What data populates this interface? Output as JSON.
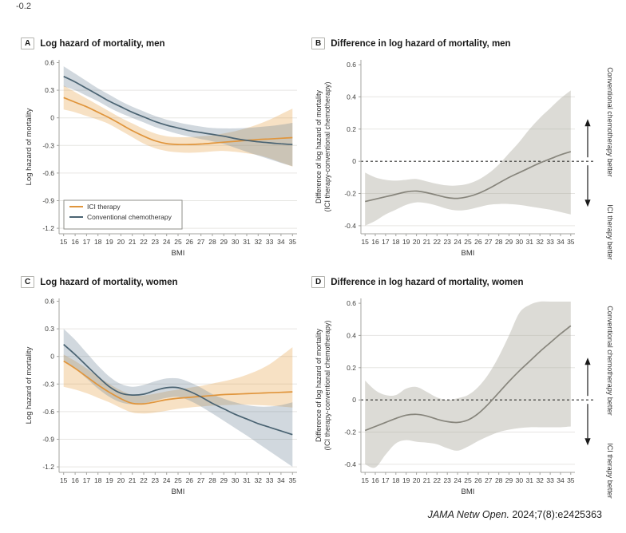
{
  "stray_text": "-0.2",
  "citation": {
    "journal": "JAMA Netw Open.",
    "rest": " 2024;7(8):e2425363"
  },
  "colors": {
    "ici": {
      "line": "#E0953C",
      "band": "#E9A851",
      "band_opacity": 0.34
    },
    "chemo": {
      "line": "#4A6372",
      "band": "#74899A",
      "band_opacity": 0.33
    },
    "diff": {
      "line": "#87857C",
      "band": "#ACA99E",
      "band_opacity": 0.42
    },
    "grid": "#E6E5E2",
    "axis": "#A3A39F",
    "tick": "#3E3E3C",
    "label": "#333333",
    "dash": "#2E2E2C"
  },
  "panels": [
    {
      "badge": "A",
      "title": "Log hazard of mortality, men"
    },
    {
      "badge": "B",
      "title": "Difference in log hazard of mortality, men"
    },
    {
      "badge": "C",
      "title": "Log hazard of mortality, women"
    },
    {
      "badge": "D",
      "title": "Difference in log hazard of mortality, women"
    }
  ],
  "chart_data": [
    {
      "panel": "A",
      "type": "line",
      "title": "Log hazard of mortality, men",
      "x": [
        15,
        16,
        17,
        18,
        19,
        20,
        21,
        22,
        23,
        24,
        25,
        26,
        27,
        28,
        29,
        30,
        31,
        32,
        33,
        34,
        35
      ],
      "xlabel": "BMI",
      "ylabel": "Log hazard of mortality",
      "ylim": [
        -1.2,
        0.6
      ],
      "yticks": [
        "0.6",
        "0.3",
        "0",
        "-0.3",
        "-0.6",
        "-0.9",
        "-1.2"
      ],
      "legend": {
        "position": "bottom-left"
      },
      "series": [
        {
          "name": "ICI therapy",
          "color": "ici",
          "values": [
            0.22,
            0.17,
            0.12,
            0.06,
            0.0,
            -0.07,
            -0.14,
            -0.2,
            -0.25,
            -0.28,
            -0.29,
            -0.29,
            -0.285,
            -0.275,
            -0.265,
            -0.255,
            -0.245,
            -0.235,
            -0.23,
            -0.222,
            -0.215
          ],
          "upper": [
            0.35,
            0.28,
            0.21,
            0.14,
            0.07,
            0.0,
            -0.06,
            -0.12,
            -0.17,
            -0.2,
            -0.21,
            -0.21,
            -0.2,
            -0.19,
            -0.17,
            -0.145,
            -0.11,
            -0.07,
            -0.02,
            0.04,
            0.1
          ],
          "lower": [
            0.09,
            0.06,
            0.02,
            -0.02,
            -0.07,
            -0.14,
            -0.21,
            -0.28,
            -0.33,
            -0.36,
            -0.375,
            -0.38,
            -0.375,
            -0.365,
            -0.36,
            -0.37,
            -0.385,
            -0.405,
            -0.44,
            -0.485,
            -0.53
          ]
        },
        {
          "name": "Conventional chemotherapy",
          "color": "chemo",
          "values": [
            0.45,
            0.39,
            0.32,
            0.25,
            0.18,
            0.12,
            0.06,
            0.01,
            -0.04,
            -0.08,
            -0.11,
            -0.14,
            -0.16,
            -0.18,
            -0.2,
            -0.225,
            -0.245,
            -0.26,
            -0.272,
            -0.282,
            -0.29
          ],
          "upper": [
            0.56,
            0.48,
            0.4,
            0.32,
            0.25,
            0.18,
            0.12,
            0.07,
            0.02,
            -0.02,
            -0.05,
            -0.075,
            -0.095,
            -0.11,
            -0.115,
            -0.115,
            -0.11,
            -0.1,
            -0.09,
            -0.075,
            -0.055
          ],
          "lower": [
            0.34,
            0.3,
            0.24,
            0.18,
            0.11,
            0.05,
            0.0,
            -0.05,
            -0.1,
            -0.14,
            -0.175,
            -0.205,
            -0.23,
            -0.255,
            -0.285,
            -0.325,
            -0.37,
            -0.41,
            -0.45,
            -0.49,
            -0.525
          ]
        }
      ]
    },
    {
      "panel": "B",
      "type": "line",
      "title": "Difference in log hazard of mortality, men",
      "x": [
        15,
        16,
        17,
        18,
        19,
        20,
        21,
        22,
        23,
        24,
        25,
        26,
        27,
        28,
        29,
        30,
        31,
        32,
        33,
        34,
        35
      ],
      "xlabel": "BMI",
      "ylabel_lines": [
        "Difference of log hazard of mortality",
        "(ICI therapy-conventional chemotherapy)"
      ],
      "ylim": [
        -0.4,
        0.6
      ],
      "yticks": [
        "0.6",
        "0.4",
        "0.2",
        "0",
        "-0.2",
        "-0.4"
      ],
      "zero_line": "dashed",
      "right_annotations": {
        "top_label": "Conventional chemotherapy better",
        "bottom_label": "ICI therapy better"
      },
      "series": [
        {
          "name": "Difference (ICI therapy-conventional chemotherapy)",
          "color": "diff",
          "values": [
            -0.25,
            -0.235,
            -0.22,
            -0.205,
            -0.19,
            -0.185,
            -0.195,
            -0.21,
            -0.225,
            -0.23,
            -0.22,
            -0.2,
            -0.17,
            -0.135,
            -0.1,
            -0.07,
            -0.04,
            -0.01,
            0.015,
            0.04,
            0.06
          ],
          "upper": [
            -0.07,
            -0.1,
            -0.115,
            -0.12,
            -0.115,
            -0.11,
            -0.125,
            -0.14,
            -0.15,
            -0.15,
            -0.14,
            -0.115,
            -0.075,
            -0.02,
            0.05,
            0.12,
            0.2,
            0.27,
            0.33,
            0.39,
            0.44
          ],
          "lower": [
            -0.4,
            -0.37,
            -0.33,
            -0.3,
            -0.27,
            -0.255,
            -0.26,
            -0.275,
            -0.295,
            -0.305,
            -0.3,
            -0.285,
            -0.27,
            -0.265,
            -0.265,
            -0.27,
            -0.28,
            -0.29,
            -0.3,
            -0.315,
            -0.33
          ]
        }
      ]
    },
    {
      "panel": "C",
      "type": "line",
      "title": "Log hazard of mortality, women",
      "x": [
        15,
        16,
        17,
        18,
        19,
        20,
        21,
        22,
        23,
        24,
        25,
        26,
        27,
        28,
        29,
        30,
        31,
        32,
        33,
        34,
        35
      ],
      "xlabel": "BMI",
      "ylabel": "Log hazard of mortality",
      "ylim": [
        -1.2,
        0.6
      ],
      "yticks": [
        "0.6",
        "0.3",
        "0",
        "-0.3",
        "-0.6",
        "-0.9",
        "-1.2"
      ],
      "series": [
        {
          "name": "ICI therapy",
          "color": "ici",
          "values": [
            -0.05,
            -0.13,
            -0.22,
            -0.31,
            -0.39,
            -0.46,
            -0.51,
            -0.515,
            -0.495,
            -0.47,
            -0.455,
            -0.445,
            -0.435,
            -0.425,
            -0.415,
            -0.41,
            -0.405,
            -0.4,
            -0.395,
            -0.39,
            -0.385
          ],
          "upper": [
            0.02,
            -0.05,
            -0.13,
            -0.22,
            -0.3,
            -0.37,
            -0.42,
            -0.425,
            -0.405,
            -0.38,
            -0.36,
            -0.34,
            -0.32,
            -0.295,
            -0.27,
            -0.24,
            -0.2,
            -0.15,
            -0.085,
            0.005,
            0.1
          ],
          "lower": [
            -0.33,
            -0.36,
            -0.4,
            -0.45,
            -0.5,
            -0.56,
            -0.61,
            -0.62,
            -0.61,
            -0.59,
            -0.57,
            -0.555,
            -0.545,
            -0.535,
            -0.53,
            -0.525,
            -0.525,
            -0.53,
            -0.535,
            -0.545,
            -0.555
          ]
        },
        {
          "name": "Conventional chemotherapy",
          "color": "chemo",
          "values": [
            0.13,
            0.02,
            -0.1,
            -0.22,
            -0.33,
            -0.4,
            -0.42,
            -0.41,
            -0.37,
            -0.34,
            -0.34,
            -0.38,
            -0.44,
            -0.51,
            -0.57,
            -0.63,
            -0.68,
            -0.73,
            -0.77,
            -0.81,
            -0.85
          ],
          "upper": [
            0.3,
            0.18,
            0.04,
            -0.1,
            -0.22,
            -0.3,
            -0.33,
            -0.31,
            -0.27,
            -0.24,
            -0.24,
            -0.28,
            -0.34,
            -0.41,
            -0.46,
            -0.5,
            -0.53,
            -0.545,
            -0.545,
            -0.53,
            -0.5
          ],
          "lower": [
            -0.04,
            -0.13,
            -0.24,
            -0.35,
            -0.44,
            -0.5,
            -0.52,
            -0.51,
            -0.48,
            -0.45,
            -0.44,
            -0.48,
            -0.545,
            -0.62,
            -0.7,
            -0.78,
            -0.86,
            -0.945,
            -1.03,
            -1.115,
            -1.2
          ]
        }
      ]
    },
    {
      "panel": "D",
      "type": "line",
      "title": "Difference in log hazard of mortality, women",
      "x": [
        15,
        16,
        17,
        18,
        19,
        20,
        21,
        22,
        23,
        24,
        25,
        26,
        27,
        28,
        29,
        30,
        31,
        32,
        33,
        34,
        35
      ],
      "xlabel": "BMI",
      "ylabel_lines": [
        "Difference of log hazard of mortality",
        "(ICI therapy-conventional chemotherapy)"
      ],
      "ylim": [
        -0.4,
        0.6
      ],
      "yticks": [
        "0.6",
        "0.4",
        "0.2",
        "0",
        "-0.2",
        "-0.4"
      ],
      "zero_line": "dashed",
      "right_annotations": {
        "top_label": "Conventional chemotherapy better",
        "bottom_label": "ICI therapy better"
      },
      "series": [
        {
          "name": "Difference (ICI therapy-conventional chemotherapy)",
          "color": "diff",
          "values": [
            -0.19,
            -0.165,
            -0.14,
            -0.115,
            -0.095,
            -0.09,
            -0.1,
            -0.12,
            -0.135,
            -0.14,
            -0.125,
            -0.085,
            -0.025,
            0.045,
            0.115,
            0.18,
            0.24,
            0.3,
            0.355,
            0.41,
            0.46
          ],
          "upper": [
            0.12,
            0.06,
            0.03,
            0.03,
            0.07,
            0.08,
            0.05,
            0.015,
            0.0,
            0.01,
            0.03,
            0.08,
            0.16,
            0.27,
            0.4,
            0.54,
            0.59,
            0.61,
            0.61,
            0.61,
            0.61
          ],
          "lower": [
            -0.4,
            -0.42,
            -0.34,
            -0.27,
            -0.25,
            -0.26,
            -0.265,
            -0.275,
            -0.3,
            -0.315,
            -0.29,
            -0.255,
            -0.225,
            -0.2,
            -0.185,
            -0.175,
            -0.17,
            -0.17,
            -0.17,
            -0.17,
            -0.165
          ]
        }
      ]
    }
  ]
}
